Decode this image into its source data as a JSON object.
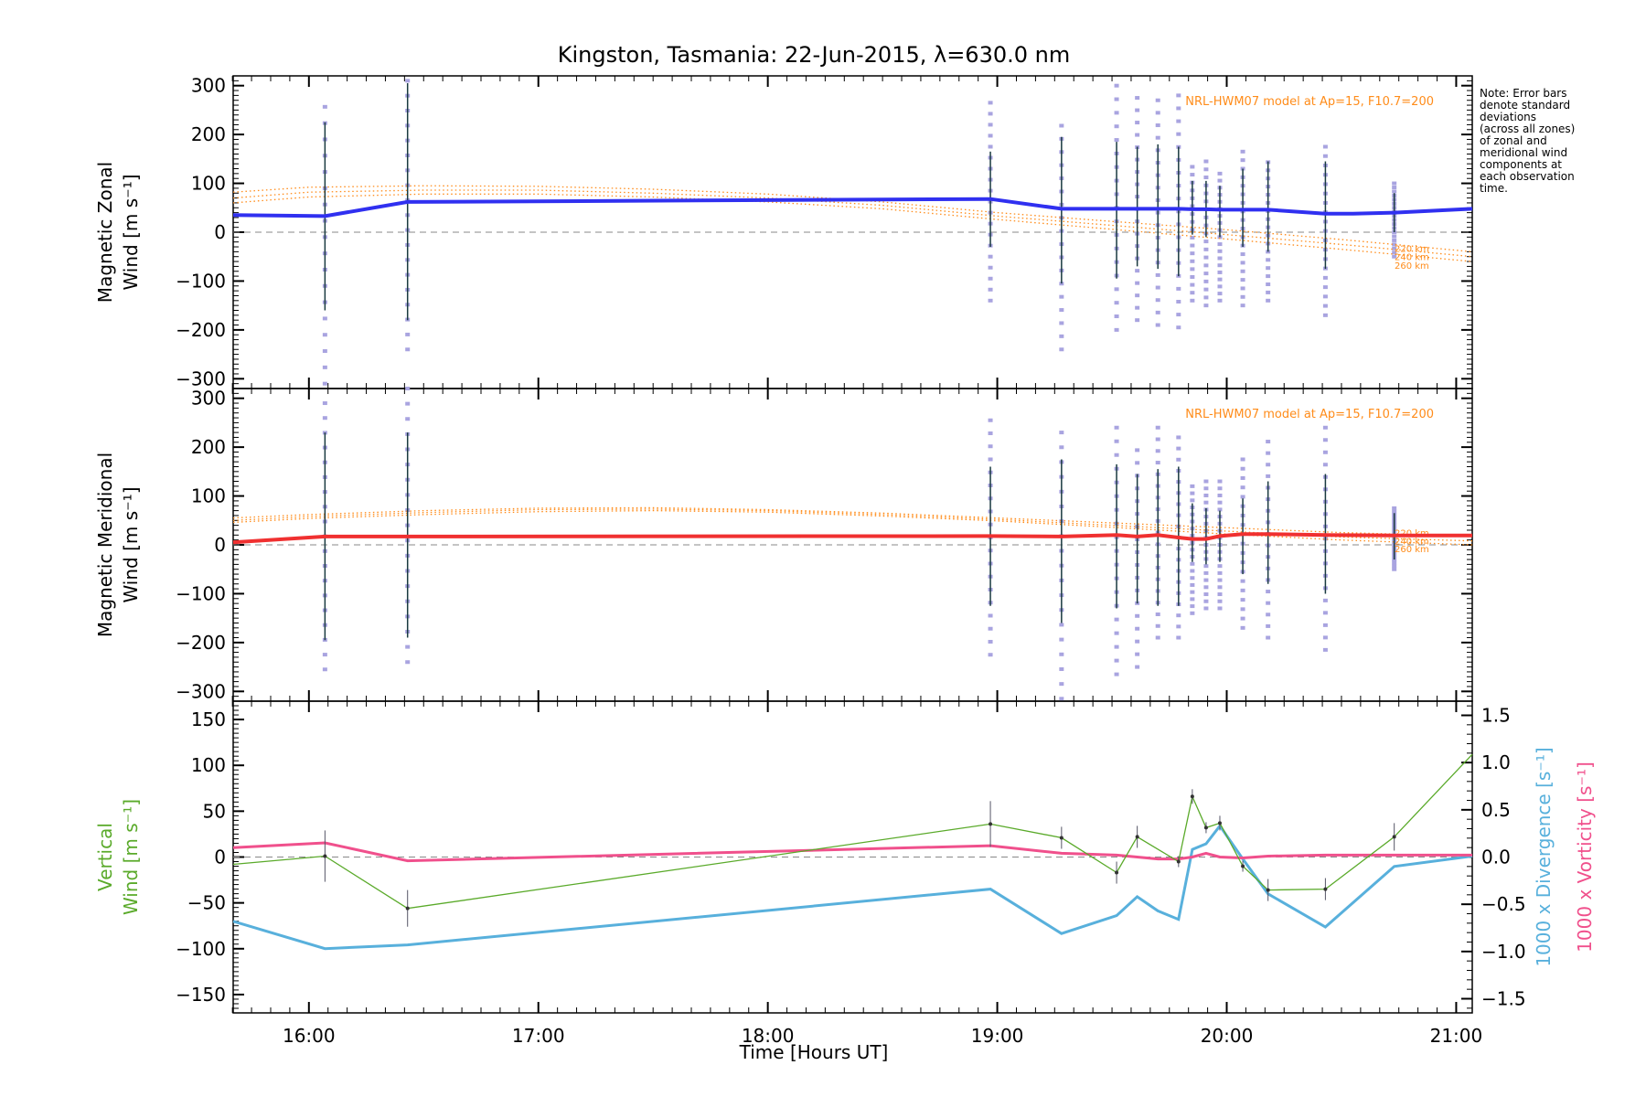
{
  "title": "Kingston, Tasmania: 22-Jun-2015, λ=630.0 nm",
  "xlabel": "Time [Hours UT]",
  "x_ticks": [
    "16:00",
    "17:00",
    "18:00",
    "19:00",
    "20:00",
    "21:00"
  ],
  "note": [
    "Note: Error bars",
    "denote standard",
    "deviations",
    "(across all zones)",
    "of zonal and",
    "meridional wind",
    "components at",
    "each observation",
    "time."
  ],
  "colors": {
    "zonal": "#3030f0",
    "meridional": "#f03030",
    "model": "#ff8c1a",
    "vertical": "#5aaa2a",
    "divergence": "#58b0dc",
    "vorticity": "#f0508c",
    "zone_points": "#a9a4e0"
  },
  "chart_data": [
    {
      "type": "line",
      "panel": "zonal",
      "ylabel": [
        "Magnetic Zonal",
        "Wind [m s⁻¹]"
      ],
      "ylim": [
        -320,
        320
      ],
      "yticks": [
        300,
        200,
        100,
        0,
        -100,
        -200,
        -300
      ],
      "xlim": [
        15.67,
        21.07
      ],
      "model_label": "NRL-HWM07 model at Ap=15, F10.7=200",
      "model_heights": [
        "220 km",
        "240 km",
        "260 km"
      ],
      "series": [
        {
          "name": "",
          "x": [
            15.67,
            16.07,
            16.43,
            18.97,
            19.28,
            19.52,
            19.61,
            19.7,
            19.79,
            19.85,
            19.91,
            19.97,
            20.07,
            20.18,
            20.43,
            20.55,
            20.73,
            21.07
          ],
          "y": [
            35,
            33,
            62,
            68,
            48,
            48,
            48,
            48,
            48,
            47,
            47,
            46,
            46,
            46,
            38,
            38,
            40,
            48
          ]
        }
      ],
      "errors": {
        "x": [
          16.07,
          16.43,
          18.97,
          19.28,
          19.52,
          19.61,
          19.7,
          19.79,
          19.85,
          19.91,
          19.97,
          20.07,
          20.18,
          20.43,
          20.73
        ],
        "lo": [
          -160,
          -180,
          -30,
          -105,
          -95,
          -70,
          -75,
          -90,
          -5,
          -10,
          -10,
          -30,
          -40,
          -75,
          0
        ],
        "hi": [
          225,
          305,
          165,
          195,
          185,
          175,
          180,
          175,
          105,
          105,
          95,
          130,
          145,
          145,
          80
        ]
      },
      "zone_spread": {
        "lo": [
          -310,
          -240,
          -140,
          -240,
          -200,
          -180,
          -190,
          -195,
          -140,
          -150,
          -140,
          -150,
          -140,
          -170,
          -50
        ],
        "hi": [
          290,
          310,
          265,
          245,
          300,
          275,
          270,
          280,
          150,
          145,
          120,
          165,
          160,
          175,
          100
        ]
      },
      "model": [
        {
          "name": "220 km",
          "x": [
            15.67,
            16.0,
            16.5,
            17.0,
            17.5,
            18.0,
            18.5,
            19.0,
            19.5,
            20.0,
            20.5,
            21.07
          ],
          "y": [
            82,
            92,
            95,
            94,
            88,
            78,
            62,
            40,
            22,
            5,
            -15,
            -40
          ]
        },
        {
          "name": "240 km",
          "x": [
            15.67,
            16.0,
            16.5,
            17.0,
            17.5,
            18.0,
            18.5,
            19.0,
            19.5,
            20.0,
            20.5,
            21.07
          ],
          "y": [
            70,
            82,
            86,
            86,
            80,
            70,
            55,
            33,
            14,
            -5,
            -25,
            -50
          ]
        },
        {
          "name": "260 km",
          "x": [
            15.67,
            16.0,
            16.5,
            17.0,
            17.5,
            18.0,
            18.5,
            19.0,
            19.5,
            20.0,
            20.5,
            21.07
          ],
          "y": [
            60,
            72,
            78,
            78,
            72,
            62,
            48,
            26,
            6,
            -14,
            -35,
            -60
          ]
        }
      ]
    },
    {
      "type": "line",
      "panel": "meridional",
      "ylabel": [
        "Magnetic Meridional",
        "Wind [m s⁻¹]"
      ],
      "ylim": [
        -320,
        320
      ],
      "yticks": [
        300,
        200,
        100,
        0,
        -100,
        -200,
        -300
      ],
      "xlim": [
        15.67,
        21.07
      ],
      "model_label": "NRL-HWM07 model at Ap=15, F10.7=200",
      "model_heights": [
        "220 km",
        "240 km",
        "260 km"
      ],
      "series": [
        {
          "name": "",
          "x": [
            15.67,
            16.07,
            16.43,
            18.97,
            19.28,
            19.52,
            19.61,
            19.7,
            19.79,
            19.85,
            19.91,
            19.97,
            20.07,
            20.18,
            20.43,
            20.73,
            21.07
          ],
          "y": [
            5,
            17,
            17,
            18,
            17,
            20,
            17,
            20,
            15,
            12,
            12,
            18,
            22,
            22,
            20,
            19,
            19
          ]
        }
      ],
      "errors": {
        "x": [
          16.07,
          16.43,
          18.97,
          19.28,
          19.52,
          19.61,
          19.7,
          19.79,
          19.85,
          19.91,
          19.97,
          20.07,
          20.18,
          20.43,
          20.73
        ],
        "lo": [
          -195,
          -190,
          -125,
          -160,
          -130,
          -120,
          -125,
          -125,
          -35,
          -40,
          -35,
          -60,
          -80,
          -100,
          -30
        ],
        "hi": [
          230,
          230,
          160,
          175,
          165,
          145,
          155,
          160,
          85,
          75,
          70,
          95,
          130,
          145,
          65
        ]
      },
      "zone_spread": {
        "lo": [
          -255,
          -240,
          -225,
          -315,
          -265,
          -250,
          -190,
          -190,
          -140,
          -130,
          -130,
          -170,
          -190,
          -215,
          -50
        ],
        "hi": [
          290,
          320,
          255,
          230,
          240,
          220,
          240,
          220,
          120,
          130,
          130,
          175,
          235,
          240,
          75
        ]
      },
      "model": [
        {
          "name": "220 km",
          "x": [
            15.67,
            16.0,
            16.5,
            17.0,
            17.5,
            18.0,
            18.5,
            19.0,
            19.5,
            20.0,
            20.5,
            21.07
          ],
          "y": [
            55,
            62,
            70,
            75,
            76,
            72,
            65,
            55,
            45,
            35,
            25,
            18
          ]
        },
        {
          "name": "240 km",
          "x": [
            15.67,
            16.0,
            16.5,
            17.0,
            17.5,
            18.0,
            18.5,
            19.0,
            19.5,
            20.0,
            20.5,
            21.07
          ],
          "y": [
            50,
            58,
            66,
            72,
            73,
            70,
            62,
            52,
            40,
            28,
            16,
            8
          ]
        },
        {
          "name": "260 km",
          "x": [
            15.67,
            16.0,
            16.5,
            17.0,
            17.5,
            18.0,
            18.5,
            19.0,
            19.5,
            20.0,
            20.5,
            21.07
          ],
          "y": [
            46,
            54,
            62,
            68,
            70,
            67,
            59,
            49,
            36,
            22,
            10,
            0
          ]
        }
      ]
    },
    {
      "type": "line",
      "panel": "vertical",
      "ylabel": [
        "Vertical",
        "Wind [m s⁻¹]"
      ],
      "ylim": [
        -170,
        170
      ],
      "yticks": [
        150,
        100,
        50,
        0,
        -50,
        -100,
        -150
      ],
      "y2label": [
        "1000 x Divergence [s⁻¹]",
        "1000 x Vorticity [s⁻¹]"
      ],
      "y2lim": [
        -1.65,
        1.65
      ],
      "y2ticks": [
        "1.5",
        "1.0",
        "0.5",
        "0.0",
        "-0.5",
        "-1.0",
        "-1.5"
      ],
      "xlim": [
        15.67,
        21.07
      ],
      "series": [
        {
          "name": "Vertical",
          "axis": "left",
          "x": [
            15.67,
            16.07,
            16.43,
            18.97,
            19.28,
            19.52,
            19.61,
            19.79,
            19.85,
            19.91,
            19.97,
            20.07,
            20.18,
            20.43,
            20.73,
            21.07
          ],
          "y": [
            -8,
            1,
            -56,
            36,
            21,
            -17,
            22,
            -5,
            66,
            32,
            37,
            -10,
            -36,
            -35,
            22,
            112
          ],
          "err": [
            0,
            28,
            20,
            25,
            12,
            12,
            12,
            6,
            8,
            6,
            8,
            6,
            12,
            12,
            15,
            0
          ]
        },
        {
          "name": "1000 x Divergence",
          "axis": "right",
          "x": [
            15.67,
            16.07,
            16.43,
            18.97,
            19.28,
            19.52,
            19.61,
            19.7,
            19.79,
            19.85,
            19.91,
            19.97,
            20.07,
            20.18,
            20.43,
            20.73,
            21.07
          ],
          "y": [
            -0.68,
            -0.97,
            -0.93,
            -0.34,
            -0.81,
            -0.62,
            -0.42,
            -0.57,
            -0.66,
            0.08,
            0.14,
            0.33,
            -0.02,
            -0.39,
            -0.74,
            -0.1,
            0.01
          ]
        },
        {
          "name": "1000 x Vorticity",
          "axis": "right",
          "x": [
            15.67,
            16.07,
            16.43,
            18.97,
            19.28,
            19.52,
            19.61,
            19.7,
            19.79,
            19.85,
            19.91,
            19.97,
            20.07,
            20.18,
            20.43,
            20.73,
            21.07
          ],
          "y": [
            0.1,
            0.15,
            -0.04,
            0.12,
            0.04,
            0.02,
            0.0,
            -0.02,
            -0.02,
            0.0,
            0.04,
            0.0,
            -0.01,
            0.01,
            0.02,
            0.02,
            0.02
          ]
        }
      ]
    }
  ]
}
